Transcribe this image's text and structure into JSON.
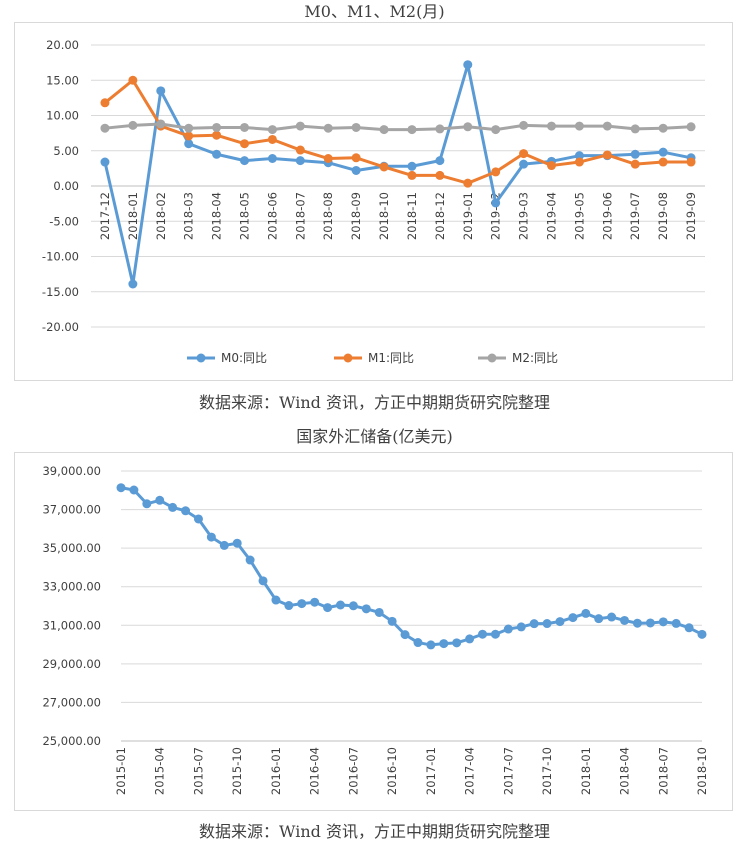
{
  "chart1": {
    "title": "M0、M1、M2(月)",
    "source": "数据来源：Wind 资讯，方正中期期货研究院整理",
    "chart_data": {
      "type": "line",
      "title": "M0、M1、M2(月)",
      "categories": [
        "2017-12",
        "2018-01",
        "2018-02",
        "2018-03",
        "2018-04",
        "2018-05",
        "2018-06",
        "2018-07",
        "2018-08",
        "2018-09",
        "2018-10",
        "2018-11",
        "2018-12",
        "2019-01",
        "2019-02",
        "2019-03",
        "2019-04",
        "2019-05",
        "2019-06",
        "2019-07",
        "2019-08",
        "2019-09"
      ],
      "y_ticks": [
        "20.00",
        "15.00",
        "10.00",
        "5.00",
        "0.00",
        "-5.00",
        "-10.00",
        "-15.00",
        "-20.00"
      ],
      "ylim": [
        -20,
        20
      ],
      "grid": true,
      "legend_position": "bottom",
      "series": [
        {
          "name": "M0:同比",
          "color": "#5b9bd5",
          "values": [
            3.4,
            -13.9,
            13.5,
            6.0,
            4.5,
            3.6,
            3.9,
            3.6,
            3.3,
            2.2,
            2.8,
            2.8,
            3.6,
            17.2,
            -2.4,
            3.1,
            3.5,
            4.3,
            4.3,
            4.5,
            4.8,
            4.0
          ]
        },
        {
          "name": "M1:同比",
          "color": "#ed7d31",
          "values": [
            11.8,
            15.0,
            8.5,
            7.1,
            7.2,
            6.0,
            6.6,
            5.1,
            3.9,
            4.0,
            2.7,
            1.5,
            1.5,
            0.4,
            2.0,
            4.6,
            2.9,
            3.4,
            4.4,
            3.1,
            3.4,
            3.4
          ]
        },
        {
          "name": "M2:同比",
          "color": "#a5a5a5",
          "values": [
            8.2,
            8.6,
            8.8,
            8.2,
            8.3,
            8.3,
            8.0,
            8.5,
            8.2,
            8.3,
            8.0,
            8.0,
            8.1,
            8.4,
            8.0,
            8.6,
            8.5,
            8.5,
            8.5,
            8.1,
            8.2,
            8.4
          ]
        }
      ]
    }
  },
  "chart2": {
    "title": "国家外汇储备(亿美元)",
    "source": "数据来源：Wind 资讯，方正中期期货研究院整理",
    "chart_data": {
      "type": "line",
      "title": "国家外汇储备(亿美元)",
      "x_labels": [
        "2015-01",
        "2015-04",
        "2015-07",
        "2015-10",
        "2016-01",
        "2016-04",
        "2016-07",
        "2016-10",
        "2017-01",
        "2017-04",
        "2017-07",
        "2017-10",
        "2018-01",
        "2018-04",
        "2018-07",
        "2018-10"
      ],
      "y_ticks": [
        "39,000.00",
        "37,000.00",
        "35,000.00",
        "33,000.00",
        "31,000.00",
        "29,000.00",
        "27,000.00",
        "25,000.00"
      ],
      "ylim": [
        25000,
        39000
      ],
      "grid": true,
      "series": [
        {
          "name": "",
          "color": "#5b9bd5",
          "values": [
            38134,
            38015,
            37300,
            37481,
            37111,
            36938,
            36513,
            35574,
            35141,
            35255,
            34383,
            33304,
            32309,
            32023,
            32125,
            32197,
            31917,
            32052,
            32011,
            31852,
            31664,
            31206,
            30516,
            30105,
            29982,
            30051,
            30091,
            30295,
            30536,
            30535,
            30807,
            30915,
            31085,
            31092,
            31193,
            31399,
            31615,
            31345,
            31428,
            31249,
            31106,
            31121,
            31179,
            31097,
            30870,
            30531
          ]
        }
      ]
    }
  }
}
